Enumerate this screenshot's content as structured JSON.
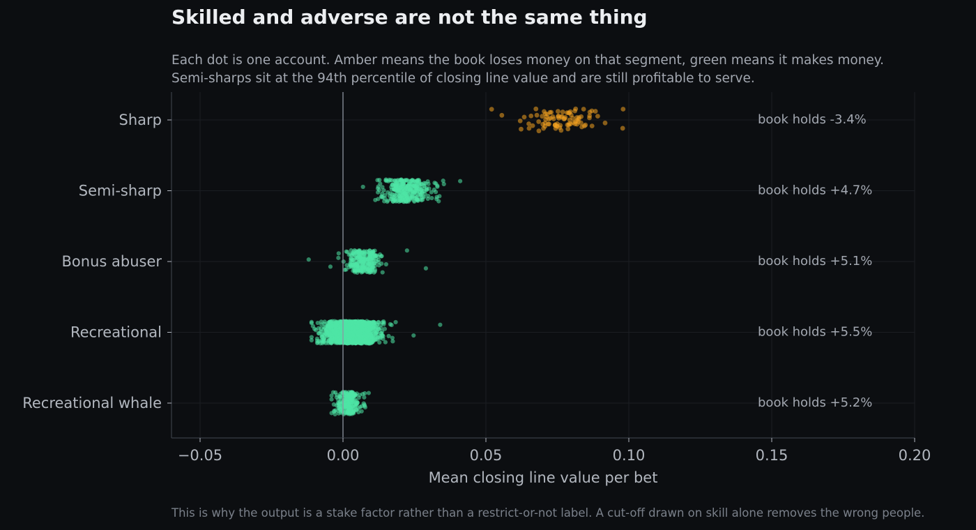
{
  "title": "Skilled and adverse are not the same thing",
  "subtitle_lines": [
    "Each dot is one account. Amber means the book loses money on that segment, green means it makes money.",
    "Semi-sharps sit at the 94th percentile of closing line value and are still profitable to serve."
  ],
  "footnote": "This is why the output is a stake factor rather than a restrict-or-not label. A cut-off drawn on skill alone removes the wrong people.",
  "colors": {
    "background": "#0c0e11",
    "loses_money": "#f0a020",
    "makes_money": "#4ee6a6",
    "zero_line": "#8d95a2",
    "grid": "#1b1e23",
    "axis": "#3a3f47"
  },
  "chart_data": {
    "type": "scatter",
    "subtype": "strip",
    "xlabel": "Mean closing line value per bet",
    "ylabel": "",
    "xlim": [
      -0.06,
      0.2
    ],
    "xticks": [
      -0.05,
      0.0,
      0.05,
      0.1,
      0.15,
      0.2
    ],
    "xtick_labels": [
      "−0.05",
      "0.00",
      "0.05",
      "0.10",
      "0.15",
      "0.20"
    ],
    "grid": true,
    "reference_line_x": 0.0,
    "categories": [
      "Sharp",
      "Semi-sharp",
      "Bonus abuser",
      "Recreational",
      "Recreational whale"
    ],
    "series": [
      {
        "category": "Sharp",
        "book_holds": -3.4,
        "book_holds_label": "book holds -3.4%",
        "color_key": "loses_money",
        "center": 0.077,
        "spread": 0.007,
        "x_min": 0.052,
        "x_max": 0.098,
        "count": 90
      },
      {
        "category": "Semi-sharp",
        "book_holds": 4.7,
        "book_holds_label": "book holds +4.7%",
        "color_key": "makes_money",
        "center": 0.022,
        "spread": 0.0045,
        "x_min": 0.007,
        "x_max": 0.041,
        "count": 320
      },
      {
        "category": "Bonus abuser",
        "book_holds": 5.1,
        "book_holds_label": "book holds +5.1%",
        "color_key": "makes_money",
        "center": 0.007,
        "spread": 0.003,
        "x_min": -0.012,
        "x_max": 0.029,
        "count": 260
      },
      {
        "category": "Recreational",
        "book_holds": 5.5,
        "book_holds_label": "book holds +5.5%",
        "color_key": "makes_money",
        "center": 0.003,
        "spread": 0.0045,
        "x_min": -0.011,
        "x_max": 0.034,
        "count": 1500
      },
      {
        "category": "Recreational whale",
        "book_holds": 5.2,
        "book_holds_label": "book holds +5.2%",
        "color_key": "makes_money",
        "center": 0.002,
        "spread": 0.0022,
        "x_min": -0.004,
        "x_max": 0.009,
        "count": 220
      }
    ]
  }
}
